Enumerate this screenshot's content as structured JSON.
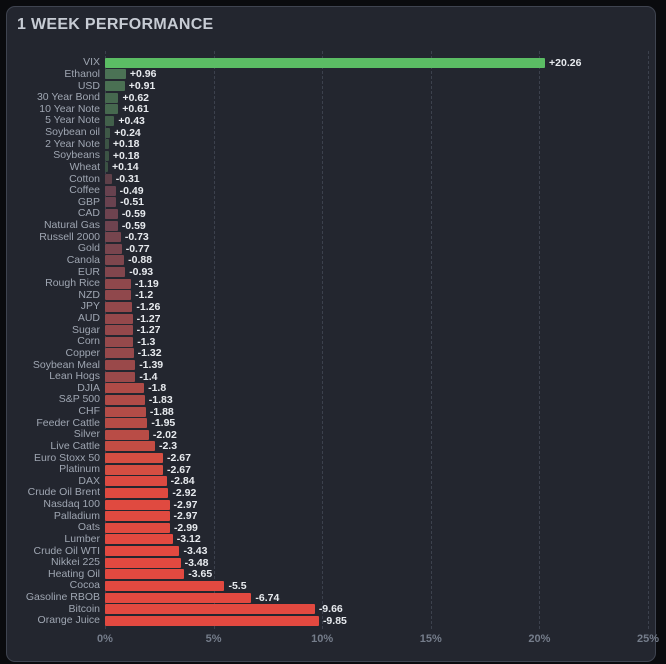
{
  "window": {
    "title": "1 WEEK PERFORMANCE"
  },
  "colors": {
    "page_bg": "#0a0b0e",
    "card_bg": "#23262f",
    "card_border": "#3f4450",
    "title_text": "#c7ccd4",
    "category_label": "#9fa6b2",
    "value_label": "#e7eaee",
    "axis_label": "#757d8b",
    "gridline": "#3c414d",
    "positive_max": "#5bbd64",
    "negative_max": "#e24940"
  },
  "chart_data": {
    "type": "bar",
    "orientation": "horizontal",
    "title": "1 WEEK PERFORMANCE",
    "xlabel": "",
    "ylabel": "",
    "xlim": [
      0,
      25
    ],
    "grid": "dashed-vertical",
    "legend": "none",
    "note": "bar length encodes absolute % change; color encodes sign and intensity",
    "x_ticks": [
      {
        "pct": 0,
        "label": "0%"
      },
      {
        "pct": 5,
        "label": "5%"
      },
      {
        "pct": 10,
        "label": "10%"
      },
      {
        "pct": 15,
        "label": "15%"
      },
      {
        "pct": 20,
        "label": "20%"
      },
      {
        "pct": 25,
        "label": "25%"
      }
    ],
    "rows": [
      {
        "label": "VIX",
        "value": 20.26,
        "display": "+20.26",
        "color": "#5bbd64"
      },
      {
        "label": "Ethanol",
        "value": 0.96,
        "display": "+0.96",
        "color": "#4b7255"
      },
      {
        "label": "USD",
        "value": 0.91,
        "display": "+0.91",
        "color": "#4a7053"
      },
      {
        "label": "30 Year Bond",
        "value": 0.62,
        "display": "+0.62",
        "color": "#46684f"
      },
      {
        "label": "10 Year Note",
        "value": 0.61,
        "display": "+0.61",
        "color": "#46684f"
      },
      {
        "label": "5 Year Note",
        "value": 0.43,
        "display": "+0.43",
        "color": "#42604b"
      },
      {
        "label": "Soybean oil",
        "value": 0.24,
        "display": "+0.24",
        "color": "#3e5847"
      },
      {
        "label": "2 Year Note",
        "value": 0.18,
        "display": "+0.18",
        "color": "#3c5445"
      },
      {
        "label": "Soybeans",
        "value": 0.18,
        "display": "+0.18",
        "color": "#3c5445"
      },
      {
        "label": "Wheat",
        "value": 0.14,
        "display": "+0.14",
        "color": "#3b5244"
      },
      {
        "label": "Cotton",
        "value": -0.31,
        "display": "-0.31",
        "color": "#5e4049"
      },
      {
        "label": "Coffee",
        "value": -0.49,
        "display": "-0.49",
        "color": "#68424f"
      },
      {
        "label": "GBP",
        "value": -0.51,
        "display": "-0.51",
        "color": "#69424f"
      },
      {
        "label": "CAD",
        "value": -0.59,
        "display": "-0.59",
        "color": "#6e434f"
      },
      {
        "label": "Natural Gas",
        "value": -0.59,
        "display": "-0.59",
        "color": "#6e434f"
      },
      {
        "label": "Russell 2000",
        "value": -0.73,
        "display": "-0.73",
        "color": "#76454e"
      },
      {
        "label": "Gold",
        "value": -0.77,
        "display": "-0.77",
        "color": "#78454e"
      },
      {
        "label": "Canola",
        "value": -0.88,
        "display": "-0.88",
        "color": "#7e464d"
      },
      {
        "label": "EUR",
        "value": -0.93,
        "display": "-0.93",
        "color": "#81464d"
      },
      {
        "label": "Rough Rice",
        "value": -1.19,
        "display": "-1.19",
        "color": "#8f484c"
      },
      {
        "label": "NZD",
        "value": -1.2,
        "display": "-1.2",
        "color": "#90484c"
      },
      {
        "label": "JPY",
        "value": -1.26,
        "display": "-1.26",
        "color": "#93484b"
      },
      {
        "label": "AUD",
        "value": -1.27,
        "display": "-1.27",
        "color": "#94484b"
      },
      {
        "label": "Sugar",
        "value": -1.27,
        "display": "-1.27",
        "color": "#94484b"
      },
      {
        "label": "Corn",
        "value": -1.3,
        "display": "-1.3",
        "color": "#95494b"
      },
      {
        "label": "Copper",
        "value": -1.32,
        "display": "-1.32",
        "color": "#96494b"
      },
      {
        "label": "Soybean Meal",
        "value": -1.39,
        "display": "-1.39",
        "color": "#9a494a"
      },
      {
        "label": "Lean Hogs",
        "value": -1.4,
        "display": "-1.4",
        "color": "#9a494a"
      },
      {
        "label": "DJIA",
        "value": -1.8,
        "display": "-1.8",
        "color": "#af4b47"
      },
      {
        "label": "S&P 500",
        "value": -1.83,
        "display": "-1.83",
        "color": "#b04b47"
      },
      {
        "label": "CHF",
        "value": -1.88,
        "display": "-1.88",
        "color": "#b34c47"
      },
      {
        "label": "Feeder Cattle",
        "value": -1.95,
        "display": "-1.95",
        "color": "#b64c46"
      },
      {
        "label": "Silver",
        "value": -2.02,
        "display": "-2.02",
        "color": "#b94c46"
      },
      {
        "label": "Live Cattle",
        "value": -2.3,
        "display": "-2.3",
        "color": "#c44d44"
      },
      {
        "label": "Euro Stoxx 50",
        "value": -2.67,
        "display": "-2.67",
        "color": "#d54e42"
      },
      {
        "label": "Platinum",
        "value": -2.67,
        "display": "-2.67",
        "color": "#d54e42"
      },
      {
        "label": "DAX",
        "value": -2.84,
        "display": "-2.84",
        "color": "#dc4a41"
      },
      {
        "label": "Crude Oil Brent",
        "value": -2.92,
        "display": "-2.92",
        "color": "#df4a40"
      },
      {
        "label": "Nasdaq 100",
        "value": -2.97,
        "display": "-2.97",
        "color": "#e04a40"
      },
      {
        "label": "Palladium",
        "value": -2.97,
        "display": "-2.97",
        "color": "#e04a40"
      },
      {
        "label": "Oats",
        "value": -2.99,
        "display": "-2.99",
        "color": "#e04a40"
      },
      {
        "label": "Lumber",
        "value": -3.12,
        "display": "-3.12",
        "color": "#e24940"
      },
      {
        "label": "Crude Oil WTI",
        "value": -3.43,
        "display": "-3.43",
        "color": "#e24940"
      },
      {
        "label": "Nikkei 225",
        "value": -3.48,
        "display": "-3.48",
        "color": "#e24940"
      },
      {
        "label": "Heating Oil",
        "value": -3.65,
        "display": "-3.65",
        "color": "#e24940"
      },
      {
        "label": "Cocoa",
        "value": -5.5,
        "display": "-5.5",
        "color": "#e24940"
      },
      {
        "label": "Gasoline RBOB",
        "value": -6.74,
        "display": "-6.74",
        "color": "#e24940"
      },
      {
        "label": "Bitcoin",
        "value": -9.66,
        "display": "-9.66",
        "color": "#e24940"
      },
      {
        "label": "Orange Juice",
        "value": -9.85,
        "display": "-9.85",
        "color": "#e24940"
      }
    ]
  }
}
